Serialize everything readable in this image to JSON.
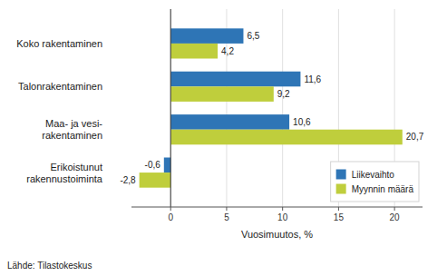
{
  "chart_data": {
    "type": "bar",
    "orientation": "horizontal",
    "categories": [
      "Erikoistunut\nrakennustoiminta",
      "Maa- ja vesi-\nrakentaminen",
      "Talonrakentaminen",
      "Koko rakentaminen"
    ],
    "series": [
      {
        "name": "Liikevaihto",
        "color": "#2E75B6",
        "values": [
          -0.6,
          10.6,
          11.6,
          6.5
        ],
        "value_labels": [
          "-0,6",
          "10,6",
          "11,6",
          "6,5"
        ]
      },
      {
        "name": "Myynnin määrä",
        "color": "#BFCE3C",
        "values": [
          -2.8,
          20.7,
          9.2,
          4.2
        ],
        "value_labels": [
          "-2,8",
          "20,7",
          "9,2",
          "4,2"
        ]
      }
    ],
    "x_label": "Vuosimuutos, %",
    "xlim": [
      -3.5,
      22.5
    ],
    "xticks": [
      0,
      5,
      10,
      15,
      20
    ],
    "grid": true,
    "legend": "lower right",
    "data_labels": true,
    "annotations": [
      "Lähde: Tilastokeskus"
    ]
  }
}
